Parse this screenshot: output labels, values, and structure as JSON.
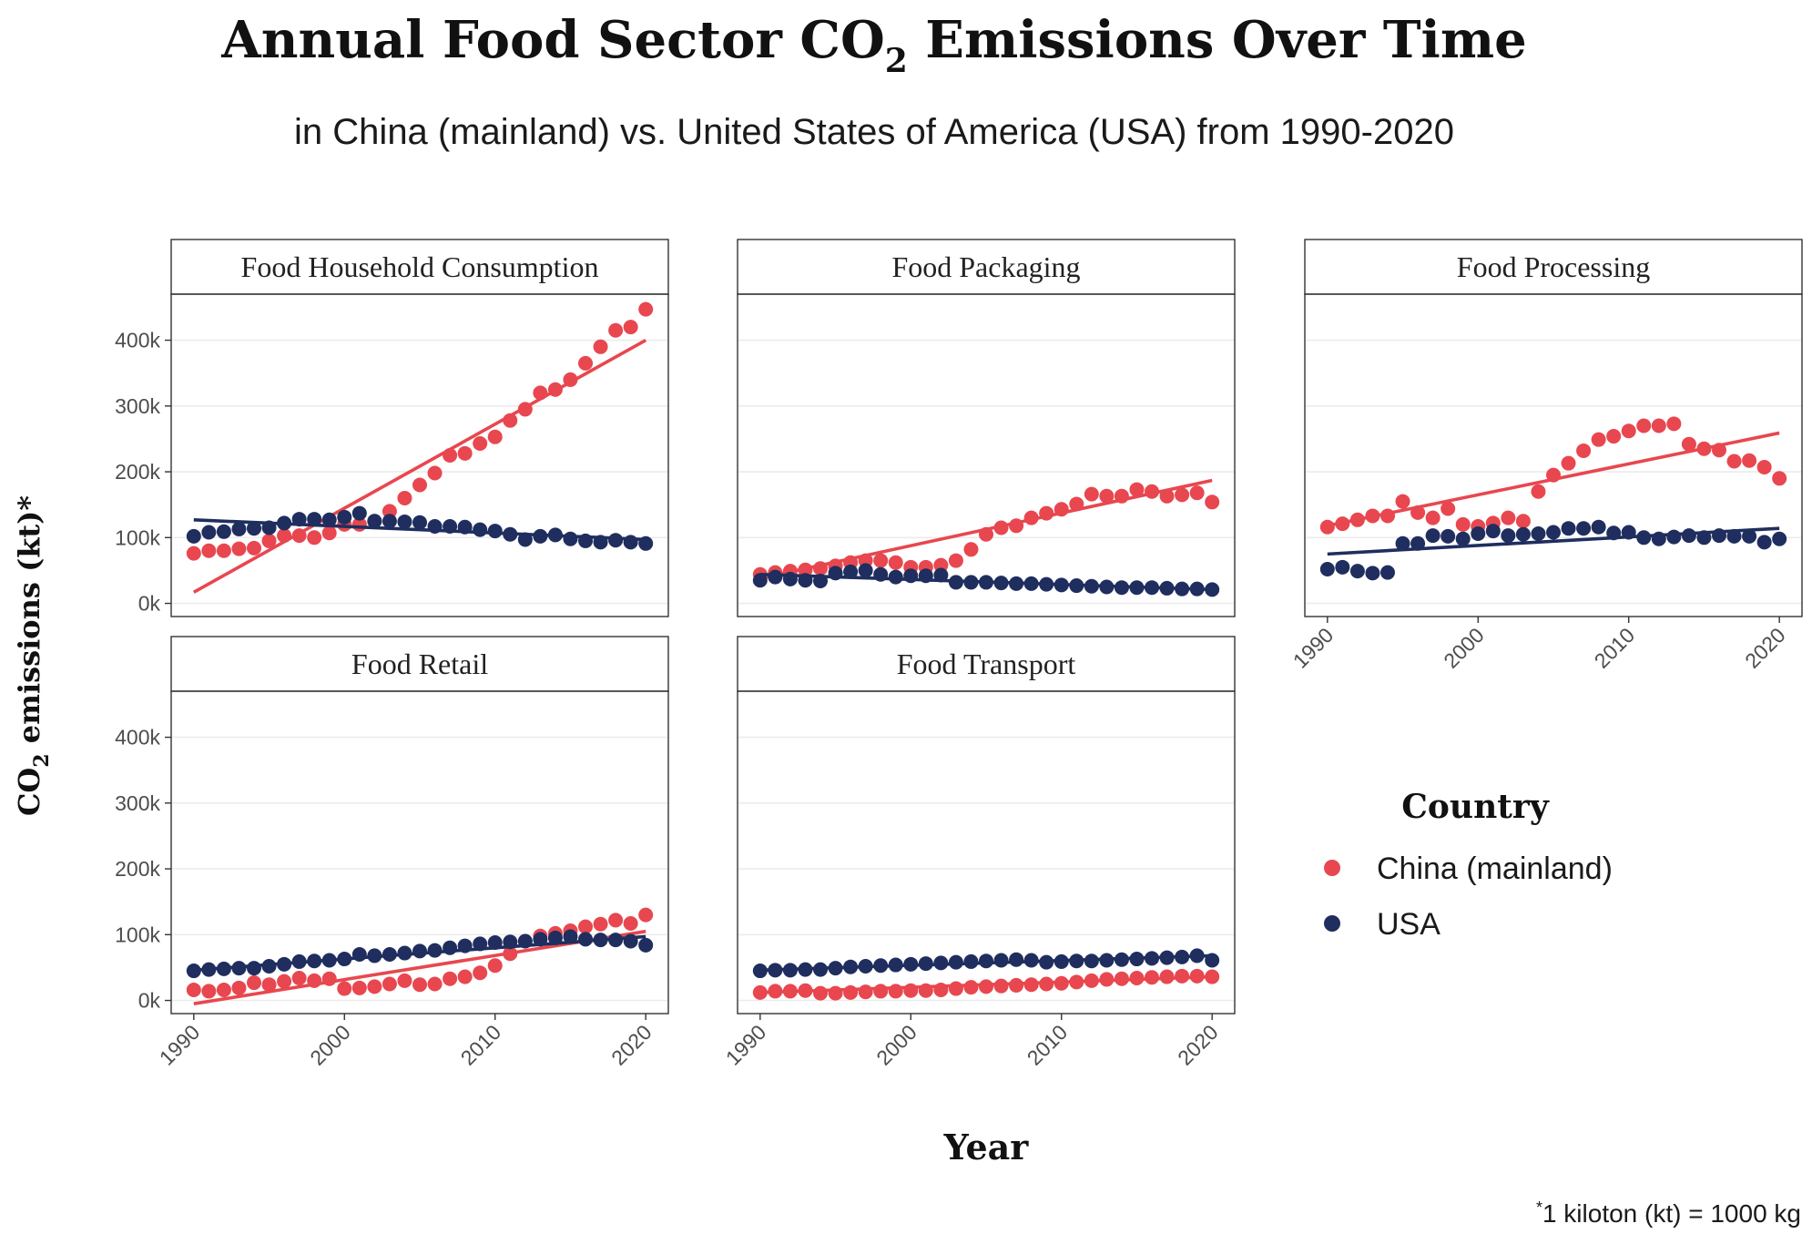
{
  "title_main": "Annual Food Sector CO",
  "title_sub_script": "2",
  "title_end": " Emissions Over Time",
  "subtitle": "in China (mainland) vs. United States of America (USA) from 1990-2020",
  "ylabel_main": "CO",
  "ylabel_sub": "2",
  "ylabel_end": " emissions (kt)*",
  "xlabel": "Year",
  "footnote_mark": "*",
  "footnote": "1 kiloton (kt) = 1000 kg",
  "legend": {
    "title": "Country",
    "items": [
      {
        "label": "China (mainland)",
        "color": "#e8474f"
      },
      {
        "label": "USA",
        "color": "#1f2e5e"
      }
    ]
  },
  "chart_data": {
    "type": "scatter",
    "x_ticks": [
      1990,
      2000,
      2010,
      2020
    ],
    "x_tick_labels": [
      "1990",
      "2000",
      "2010",
      "2020"
    ],
    "y_ticks": [
      0,
      100000,
      200000,
      300000,
      400000
    ],
    "y_tick_labels": [
      "0k",
      "100k",
      "200k",
      "300k",
      "400k"
    ],
    "xlim": [
      1988.5,
      2021.5
    ],
    "ylim": [
      -20000,
      470000
    ],
    "grid": "horizontal",
    "legend_placement": "right",
    "x": [
      1990,
      1991,
      1992,
      1993,
      1994,
      1995,
      1996,
      1997,
      1998,
      1999,
      2000,
      2001,
      2002,
      2003,
      2004,
      2005,
      2006,
      2007,
      2008,
      2009,
      2010,
      2011,
      2012,
      2013,
      2014,
      2015,
      2016,
      2017,
      2018,
      2019,
      2020
    ],
    "facets": [
      {
        "name": "Food Household Consumption",
        "series": [
          {
            "name": "China (mainland)",
            "color": "#e8474f",
            "values": [
              76000,
              80000,
              80000,
              83000,
              84000,
              95000,
              103000,
              103000,
              100000,
              107000,
              120000,
              120000,
              125000,
              140000,
              160000,
              180000,
              198000,
              225000,
              228000,
              243000,
              253000,
              278000,
              295000,
              320000,
              325000,
              340000,
              365000,
              390000,
              415000,
              420000,
              447000
            ],
            "trend": [
              17000,
              400000
            ]
          },
          {
            "name": "USA",
            "color": "#1f2e5e",
            "values": [
              102000,
              108000,
              109000,
              113000,
              114000,
              115000,
              122000,
              128000,
              128000,
              127000,
              131000,
              137000,
              125000,
              125000,
              124000,
              123000,
              117000,
              117000,
              116000,
              112000,
              110000,
              105000,
              97000,
              102000,
              104000,
              98000,
              95000,
              93000,
              96000,
              93000,
              91000
            ],
            "trend": [
              127000,
              97000
            ]
          }
        ]
      },
      {
        "name": "Food Packaging",
        "series": [
          {
            "name": "China (mainland)",
            "color": "#e8474f",
            "values": [
              44000,
              47000,
              49000,
              51000,
              53000,
              57000,
              62000,
              65000,
              65000,
              62000,
              55000,
              55000,
              58000,
              65000,
              82000,
              105000,
              115000,
              118000,
              130000,
              137000,
              143000,
              151000,
              166000,
              163000,
              163000,
              173000,
              170000,
              163000,
              165000,
              168000,
              154000
            ],
            "trend": [
              38000,
              187000
            ]
          },
          {
            "name": "USA",
            "color": "#1f2e5e",
            "values": [
              35000,
              40000,
              37000,
              35000,
              34000,
              46000,
              48000,
              50000,
              44000,
              40000,
              42000,
              42000,
              43000,
              32000,
              32000,
              32000,
              31000,
              30000,
              30000,
              29000,
              28000,
              27000,
              26000,
              25000,
              24000,
              24000,
              24000,
              23000,
              22000,
              22000,
              21000
            ],
            "trend": [
              44000,
              21000
            ]
          }
        ]
      },
      {
        "name": "Food Processing",
        "series": [
          {
            "name": "China (mainland)",
            "color": "#e8474f",
            "values": [
              116000,
              121000,
              127000,
              133000,
              133000,
              155000,
              138000,
              130000,
              144000,
              120000,
              117000,
              122000,
              130000,
              125000,
              170000,
              195000,
              213000,
              232000,
              249000,
              254000,
              262000,
              270000,
              270000,
              273000,
              242000,
              235000,
              233000,
              216000,
              217000,
              207000,
              190000
            ],
            "trend": [
              118000,
              259000
            ]
          },
          {
            "name": "USA",
            "color": "#1f2e5e",
            "values": [
              52000,
              55000,
              49000,
              46000,
              47000,
              91000,
              91000,
              103000,
              102000,
              98000,
              106000,
              110000,
              103000,
              105000,
              106000,
              108000,
              114000,
              114000,
              116000,
              107000,
              108000,
              100000,
              98000,
              101000,
              103000,
              100000,
              103000,
              102000,
              102000,
              93000,
              98000
            ],
            "trend": [
              75000,
              114000
            ]
          }
        ]
      },
      {
        "name": "Food Retail",
        "series": [
          {
            "name": "China (mainland)",
            "color": "#e8474f",
            "values": [
              16000,
              14000,
              16000,
              19000,
              27000,
              24000,
              29000,
              34000,
              30000,
              33000,
              18000,
              19000,
              21000,
              25000,
              30000,
              24000,
              25000,
              33000,
              36000,
              42000,
              53000,
              71000,
              90000,
              98000,
              102000,
              106000,
              112000,
              116000,
              122000,
              117000,
              130000
            ],
            "trend": [
              -5000,
              105000
            ]
          },
          {
            "name": "USA",
            "color": "#1f2e5e",
            "values": [
              45000,
              47000,
              48000,
              49000,
              49000,
              52000,
              55000,
              59000,
              60000,
              61000,
              63000,
              70000,
              68000,
              70000,
              72000,
              75000,
              76000,
              80000,
              83000,
              86000,
              88000,
              89000,
              90000,
              93000,
              95000,
              97000,
              93000,
              92000,
              92000,
              90000,
              84000
            ],
            "trend": [
              46000,
              97000
            ]
          }
        ]
      },
      {
        "name": "Food Transport",
        "series": [
          {
            "name": "China (mainland)",
            "color": "#e8474f",
            "values": [
              12000,
              14000,
              14000,
              15000,
              11000,
              11000,
              12000,
              13000,
              14000,
              14000,
              15000,
              15000,
              16000,
              18000,
              20000,
              21000,
              22000,
              23000,
              24000,
              25000,
              26000,
              28000,
              30000,
              32000,
              33000,
              34000,
              35000,
              36000,
              37000,
              37000,
              36000
            ],
            "trend": [
              12000,
              36000
            ]
          },
          {
            "name": "USA",
            "color": "#1f2e5e",
            "values": [
              45000,
              46000,
              46000,
              47000,
              47000,
              49000,
              51000,
              52000,
              53000,
              54000,
              55000,
              56000,
              57000,
              58000,
              59000,
              60000,
              61000,
              62000,
              61000,
              58000,
              59000,
              60000,
              60000,
              61000,
              62000,
              63000,
              64000,
              65000,
              66000,
              68000,
              61000
            ],
            "trend": [
              46000,
              68000
            ]
          }
        ]
      }
    ]
  }
}
